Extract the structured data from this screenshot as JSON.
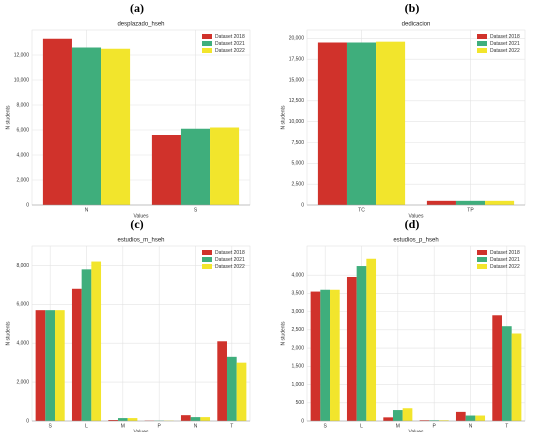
{
  "chart_data": [
    {
      "type": "bar",
      "panel": "(a)",
      "title": "desplazado_hseh",
      "xlabel": "Values",
      "ylabel": "N students",
      "categories": [
        "N",
        "S"
      ],
      "series": [
        {
          "name": "Dataset 2018",
          "color": "#d0322b",
          "values": [
            13300,
            5600
          ]
        },
        {
          "name": "Dataset 2021",
          "color": "#3fae7c",
          "values": [
            12600,
            6100
          ]
        },
        {
          "name": "Dataset 2022",
          "color": "#f2e52c",
          "values": [
            12500,
            6200
          ]
        }
      ],
      "ylim": [
        0,
        14000
      ],
      "yticks": [
        0,
        {
          "value": 2000,
          "label": "2,000"
        },
        {
          "value": 4000,
          "label": "4,000"
        },
        {
          "value": 6000,
          "label": "6,000"
        },
        {
          "value": 8000,
          "label": "8,000"
        },
        {
          "value": 10000,
          "label": "10,000"
        },
        {
          "value": 12000,
          "label": "12,000"
        }
      ],
      "grid": true,
      "legend": "upper right"
    },
    {
      "type": "bar",
      "panel": "(b)",
      "title": "dedicacion",
      "xlabel": "Values",
      "ylabel": "N students",
      "categories": [
        "TC",
        "TP"
      ],
      "series": [
        {
          "name": "Dataset 2018",
          "color": "#d0322b",
          "values": [
            19500,
            500
          ]
        },
        {
          "name": "Dataset 2021",
          "color": "#3fae7c",
          "values": [
            19500,
            500
          ]
        },
        {
          "name": "Dataset 2022",
          "color": "#f2e52c",
          "values": [
            19600,
            500
          ]
        }
      ],
      "ylim": [
        0,
        21000
      ],
      "yticks": [
        0,
        {
          "value": 2500,
          "label": "2,500"
        },
        {
          "value": 5000,
          "label": "5,000"
        },
        {
          "value": 7500,
          "label": "7,500"
        },
        {
          "value": 10000,
          "label": "10,000"
        },
        {
          "value": 12500,
          "label": "12,500"
        },
        {
          "value": 15000,
          "label": "15,000"
        },
        {
          "value": 17500,
          "label": "17,500"
        },
        {
          "value": 20000,
          "label": "20,000"
        }
      ],
      "grid": true,
      "legend": "upper right"
    },
    {
      "type": "bar",
      "panel": "(c)",
      "title": "estudios_m_hseh",
      "xlabel": "Values",
      "ylabel": "N students",
      "categories": [
        "S",
        "L",
        "M",
        "P",
        "N",
        "T"
      ],
      "series": [
        {
          "name": "Dataset 2018",
          "color": "#d0322b",
          "values": [
            5700,
            6800,
            50,
            20,
            300,
            4100
          ]
        },
        {
          "name": "Dataset 2021",
          "color": "#3fae7c",
          "values": [
            5700,
            7800,
            150,
            20,
            200,
            3300
          ]
        },
        {
          "name": "Dataset 2022",
          "color": "#f2e52c",
          "values": [
            5700,
            8200,
            150,
            20,
            200,
            3000
          ]
        }
      ],
      "ylim": [
        0,
        9000
      ],
      "yticks": [
        0,
        {
          "value": 2000,
          "label": "2,000"
        },
        {
          "value": 4000,
          "label": "4,000"
        },
        {
          "value": 6000,
          "label": "6,000"
        },
        {
          "value": 8000,
          "label": "8,000"
        }
      ],
      "grid": true,
      "legend": "upper right"
    },
    {
      "type": "bar",
      "panel": "(d)",
      "title": "estudios_p_hseh",
      "xlabel": "Values",
      "ylabel": "N students",
      "categories": [
        "S",
        "L",
        "M",
        "P",
        "N",
        "T"
      ],
      "series": [
        {
          "name": "Dataset 2018",
          "color": "#d0322b",
          "values": [
            3550,
            3950,
            100,
            20,
            250,
            2900
          ]
        },
        {
          "name": "Dataset 2021",
          "color": "#3fae7c",
          "values": [
            3600,
            4250,
            300,
            20,
            150,
            2600
          ]
        },
        {
          "name": "Dataset 2022",
          "color": "#f2e52c",
          "values": [
            3600,
            4450,
            350,
            20,
            150,
            2400
          ]
        }
      ],
      "ylim": [
        0,
        4800
      ],
      "yticks": [
        0,
        500,
        {
          "value": 1000,
          "label": "1,000"
        },
        {
          "value": 1500,
          "label": "1,500"
        },
        {
          "value": 2000,
          "label": "2,000"
        },
        {
          "value": 2500,
          "label": "2,500"
        },
        {
          "value": 3000,
          "label": "3,000"
        },
        {
          "value": 3500,
          "label": "3,500"
        },
        {
          "value": 4000,
          "label": "4,000"
        }
      ],
      "grid": true,
      "legend": "upper right"
    }
  ]
}
